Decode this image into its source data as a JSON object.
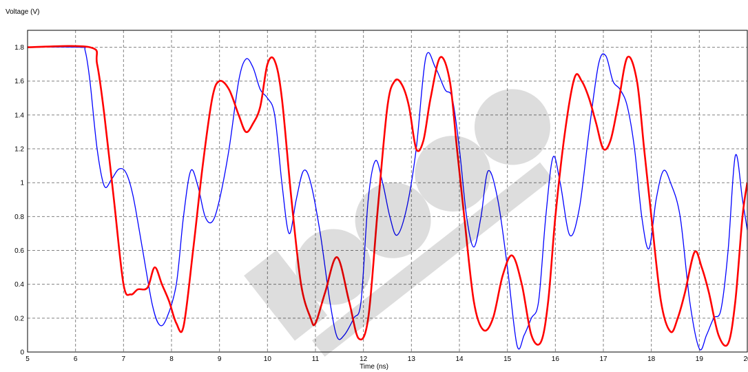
{
  "chart_data": {
    "type": "line",
    "xlabel": "Time (ns)",
    "ylabel": "Voltage (V)",
    "xlim": [
      5,
      20
    ],
    "ylim": [
      0,
      1.9
    ],
    "x_ticks": [
      5,
      6,
      7,
      8,
      9,
      10,
      11,
      12,
      13,
      14,
      15,
      16,
      17,
      18,
      19,
      20
    ],
    "x_tick_labels": [
      "5",
      "6",
      "7",
      "8",
      "9",
      "10",
      "11",
      "12",
      "13",
      "14",
      "15",
      "16",
      "17",
      "18",
      "19",
      "20"
    ],
    "y_ticks": [
      0,
      0.2,
      0.4,
      0.6,
      0.8,
      1,
      1.2,
      1.4,
      1.6,
      1.8
    ],
    "y_tick_labels": [
      "0",
      "0.2",
      "0.4",
      "0.6",
      "0.8",
      "1",
      "1.2",
      "1.4",
      "1.6",
      "1.8"
    ],
    "grid": true,
    "series": [
      {
        "color": "#0000ff",
        "width": 1.3,
        "x": [
          5,
          6.1,
          6.2,
          6.3,
          6.45,
          6.6,
          6.75,
          6.9,
          7.05,
          7.2,
          7.4,
          7.6,
          7.75,
          7.9,
          8.1,
          8.25,
          8.4,
          8.55,
          8.7,
          8.85,
          9.0,
          9.2,
          9.4,
          9.55,
          9.7,
          9.85,
          10.0,
          10.15,
          10.3,
          10.45,
          10.6,
          10.75,
          10.9,
          11.1,
          11.3,
          11.45,
          11.6,
          11.8,
          11.95,
          12.1,
          12.25,
          12.4,
          12.55,
          12.7,
          12.9,
          13.1,
          13.3,
          13.5,
          13.7,
          13.85,
          14.0,
          14.15,
          14.3,
          14.45,
          14.6,
          14.8,
          15.0,
          15.2,
          15.35,
          15.5,
          15.65,
          15.8,
          15.95,
          16.1,
          16.3,
          16.5,
          16.7,
          16.9,
          17.05,
          17.2,
          17.35,
          17.5,
          17.65,
          17.8,
          17.95,
          18.1,
          18.25,
          18.4,
          18.6,
          18.8,
          19.0,
          19.15,
          19.3,
          19.45,
          19.6,
          19.75,
          19.9,
          20.0
        ],
        "y": [
          1.8,
          1.8,
          1.78,
          1.6,
          1.2,
          0.98,
          1.02,
          1.08,
          1.06,
          0.92,
          0.6,
          0.28,
          0.16,
          0.2,
          0.4,
          0.8,
          1.07,
          0.98,
          0.8,
          0.77,
          0.9,
          1.2,
          1.6,
          1.73,
          1.68,
          1.55,
          1.5,
          1.4,
          1.0,
          0.7,
          0.9,
          1.07,
          1.0,
          0.7,
          0.3,
          0.09,
          0.1,
          0.2,
          0.3,
          0.9,
          1.13,
          1.0,
          0.8,
          0.69,
          0.85,
          1.2,
          1.74,
          1.68,
          1.55,
          1.5,
          1.2,
          0.8,
          0.62,
          0.8,
          1.07,
          0.9,
          0.5,
          0.04,
          0.1,
          0.2,
          0.3,
          0.8,
          1.15,
          1.0,
          0.69,
          0.85,
          1.3,
          1.7,
          1.75,
          1.6,
          1.55,
          1.45,
          1.2,
          0.8,
          0.61,
          0.9,
          1.07,
          1.0,
          0.8,
          0.3,
          0.02,
          0.1,
          0.2,
          0.25,
          0.6,
          1.16,
          0.9,
          0.72
        ]
      },
      {
        "color": "#ff0000",
        "width": 2.6,
        "x": [
          5,
          6.3,
          6.45,
          6.6,
          6.8,
          7.0,
          7.15,
          7.3,
          7.5,
          7.65,
          7.8,
          7.95,
          8.1,
          8.25,
          8.45,
          8.65,
          8.85,
          9.0,
          9.2,
          9.4,
          9.55,
          9.7,
          9.85,
          10.0,
          10.15,
          10.3,
          10.5,
          10.7,
          10.9,
          11.0,
          11.2,
          11.45,
          11.7,
          11.9,
          12.1,
          12.3,
          12.5,
          12.65,
          12.8,
          12.95,
          13.1,
          13.25,
          13.4,
          13.6,
          13.8,
          13.95,
          14.1,
          14.3,
          14.5,
          14.7,
          14.9,
          15.1,
          15.3,
          15.5,
          15.7,
          15.85,
          16.0,
          16.2,
          16.4,
          16.55,
          16.7,
          16.85,
          17.0,
          17.15,
          17.3,
          17.5,
          17.7,
          17.85,
          18.0,
          18.2,
          18.4,
          18.55,
          18.7,
          18.9,
          19.05,
          19.2,
          19.4,
          19.6,
          19.75,
          19.9,
          20.0
        ],
        "y": [
          1.8,
          1.8,
          1.7,
          1.4,
          0.9,
          0.4,
          0.34,
          0.37,
          0.38,
          0.5,
          0.4,
          0.3,
          0.17,
          0.15,
          0.6,
          1.1,
          1.5,
          1.6,
          1.55,
          1.4,
          1.3,
          1.35,
          1.45,
          1.7,
          1.72,
          1.5,
          0.9,
          0.4,
          0.2,
          0.17,
          0.35,
          0.56,
          0.3,
          0.08,
          0.2,
          0.85,
          1.45,
          1.6,
          1.58,
          1.45,
          1.2,
          1.25,
          1.5,
          1.74,
          1.6,
          1.2,
          0.8,
          0.3,
          0.13,
          0.2,
          0.45,
          0.57,
          0.4,
          0.1,
          0.06,
          0.3,
          0.8,
          1.3,
          1.62,
          1.6,
          1.5,
          1.35,
          1.2,
          1.25,
          1.45,
          1.74,
          1.6,
          1.2,
          0.8,
          0.3,
          0.12,
          0.2,
          0.35,
          0.59,
          0.5,
          0.35,
          0.1,
          0.05,
          0.3,
          0.8,
          1.0
        ]
      }
    ]
  }
}
